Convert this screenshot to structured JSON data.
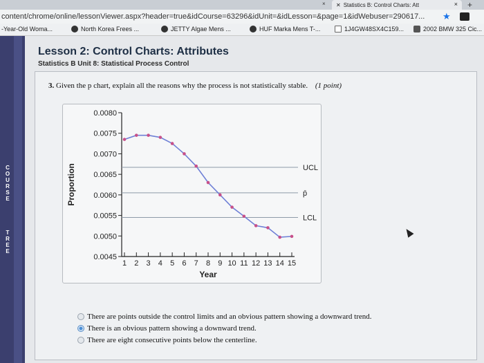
{
  "browser": {
    "tab_title": "Statistics B: Control Charts: Att",
    "tab_close": "×",
    "new_tab": "+",
    "tiny_close": "×",
    "url": "content/chrome/online/lessonViewer.aspx?header=true&idCourse=63296&idUnit=&idLesson=&page=1&idWebuser=290617..."
  },
  "bookmarks": [
    {
      "label": "-Year-Old Woma...",
      "icon": "partial-icon"
    },
    {
      "label": "North Korea Frees ...",
      "icon": "e-icon"
    },
    {
      "label": "JETTY Algae Mens ...",
      "icon": "jetty-icon"
    },
    {
      "label": "HUF Marka Mens T-...",
      "icon": "huf-icon"
    },
    {
      "label": "1J4GW48SX4C159...",
      "icon": "doc-icon"
    },
    {
      "label": "2002 BMW 325 Cic...",
      "icon": "lock-icon"
    }
  ],
  "sidebar": {
    "letters1": [
      "C",
      "O",
      "U",
      "R",
      "S",
      "E"
    ],
    "letters2": [
      "T",
      "R",
      "E",
      "E"
    ]
  },
  "lesson": {
    "title": "Lesson 2: Control Charts: Attributes",
    "subtitle": "Statistics B  Unit 8: Statistical Process Control"
  },
  "question": {
    "number": "3.",
    "text": "Given the p chart, explain all the reasons why the process is not statistically stable.",
    "points": "(1 point)"
  },
  "chart_data": {
    "type": "line",
    "xlabel": "Year",
    "ylabel": "Proportion",
    "x": [
      1,
      2,
      3,
      4,
      5,
      6,
      7,
      8,
      9,
      10,
      11,
      12,
      13,
      14,
      15
    ],
    "y": [
      0.00735,
      0.00745,
      0.00745,
      0.0074,
      0.00725,
      0.007,
      0.0067,
      0.0063,
      0.006,
      0.0057,
      0.00548,
      0.00525,
      0.0052,
      0.00497,
      0.00499
    ],
    "ylim": [
      0.0045,
      0.008
    ],
    "yticks": [
      "0.0080",
      "0.0075",
      "0.0070",
      "0.0065",
      "0.0060",
      "0.0055",
      "0.0050",
      "0.0045"
    ],
    "xticks": [
      "1",
      "2",
      "3",
      "4",
      "5",
      "6",
      "7",
      "8",
      "9",
      "10",
      "11",
      "12",
      "13",
      "14",
      "15"
    ],
    "lines": [
      {
        "label": "UCL",
        "value": 0.00667
      },
      {
        "label": "p̄",
        "value": 0.00605
      },
      {
        "label": "LCL",
        "value": 0.00545
      }
    ],
    "line_color": "#6e7fd6",
    "marker_color": "#c7508a",
    "ref_line_color": "#8c9aa8"
  },
  "answers": [
    {
      "text": "There are points outside the control limits and an obvious pattern showing a downward trend.",
      "selected": false
    },
    {
      "text": "There is an obvious pattern showing a downward trend.",
      "selected": true
    },
    {
      "text": "There are eight consecutive points below the centerline.",
      "selected": false
    }
  ]
}
